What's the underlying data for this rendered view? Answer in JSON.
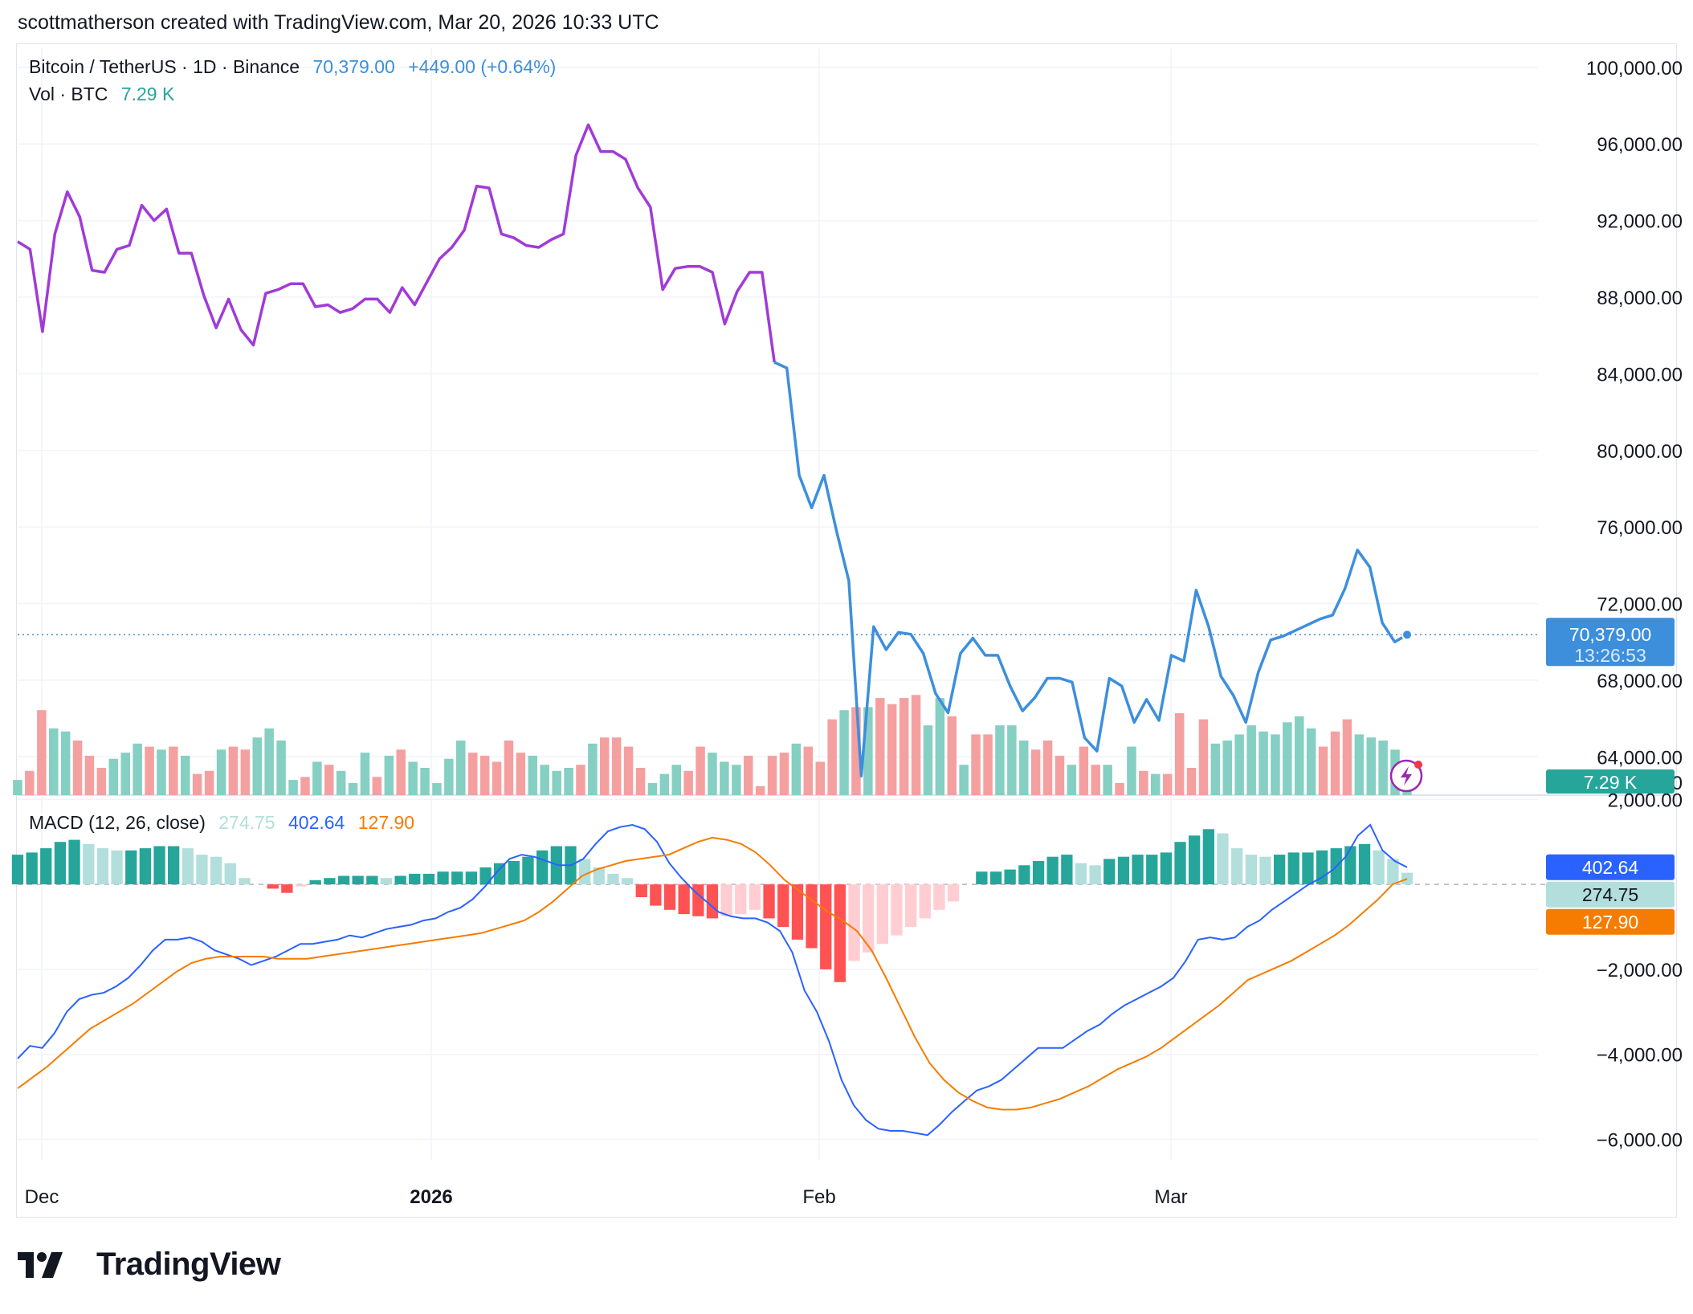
{
  "header": {
    "snapshot_text": "scottmatherson created with TradingView.com, Mar 20, 2026 10:33 UTC"
  },
  "price_legend": {
    "symbol": "Bitcoin / TetherUS · 1D · Binance",
    "last": "70,379.00",
    "change": "+449.00 (+0.64%)"
  },
  "volume_legend": {
    "label": "Vol · BTC",
    "value": "7.29 K"
  },
  "macd_legend": {
    "label": "MACD (12, 26, close)",
    "histogram": "274.75",
    "macd": "402.64",
    "signal": "127.90"
  },
  "price_axis": {
    "tick_labels": [
      "100,000.00",
      "96,000.00",
      "92,000.00",
      "88,000.00",
      "84,000.00",
      "80,000.00",
      "76,000.00",
      "72,000.00",
      "68,000.00",
      "64,000.00"
    ],
    "volume_axis_partial": ".00",
    "last_price_tag": "70,379.00",
    "countdown": "13:26:53",
    "volume_tag": "7.29 K"
  },
  "macd_axis": {
    "tick_labels": [
      "2,000.00",
      "−2,000.00",
      "−4,000.00",
      "−6,000.00"
    ],
    "macd_tag": "402.64",
    "histogram_tag": "274.75",
    "signal_tag": "127.90"
  },
  "time_axis": {
    "labels": [
      "Dec",
      "2026",
      "Feb",
      "Mar"
    ]
  },
  "brand": {
    "name": "TradingView"
  },
  "colors": {
    "price_line_top": "#a13ad8",
    "price_line_bottom": "#3d8fdc",
    "vol_up": "#86cfc3",
    "vol_down": "#f5a0a0",
    "macd_line": "#2962ff",
    "signal_line": "#f57c00",
    "hist_up_strong": "#26a69a",
    "hist_up_weak": "#b2dfdb",
    "hist_down_strong": "#ff5252",
    "hist_down_weak": "#ffcdd2"
  },
  "chart_data": [
    {
      "type": "line",
      "title": "Bitcoin / TetherUS · 1D · Binance",
      "x_start": "2025-11-28",
      "x_end": "2026-03-20",
      "ylim": [
        62000,
        101000
      ],
      "series": [
        {
          "name": "Bitcoin / TetherUS",
          "values": [
            90900,
            90500,
            86200,
            91300,
            93500,
            92200,
            89400,
            89300,
            90500,
            90700,
            92800,
            92000,
            92600,
            90300,
            90300,
            88100,
            86400,
            87900,
            86300,
            85500,
            88200,
            88400,
            88700,
            88700,
            87500,
            87600,
            87200,
            87400,
            87900,
            87900,
            87200,
            88500,
            87600,
            88800,
            90000,
            90600,
            91500,
            93800,
            93700,
            91300,
            91100,
            90700,
            90600,
            91000,
            91300,
            95400,
            97000,
            95600,
            95600,
            95200,
            93700,
            92700,
            88400,
            89500,
            89600,
            89600,
            89300,
            86600,
            88300,
            89300,
            89300,
            84600,
            84300,
            78700,
            77000,
            78700,
            75800,
            73200,
            63000,
            70800,
            69600,
            70500,
            70400,
            69400,
            67300,
            66300,
            69400,
            70200,
            69300,
            69300,
            67700,
            66400,
            67100,
            68100,
            68100,
            67900,
            65000,
            64300,
            68100,
            67700,
            65800,
            67000,
            65900,
            69300,
            69000,
            72700,
            70800,
            68200,
            67200,
            65800,
            68400,
            70100,
            70300,
            70600,
            70900,
            71200,
            71400,
            72800,
            74800,
            73900,
            71000,
            70000,
            70379
          ]
        }
      ]
    },
    {
      "type": "bar",
      "title": "Vol · BTC",
      "ylim": [
        0,
        45000
      ],
      "series": [
        {
          "name": "Vol · BTC",
          "values": [
            5000,
            8000,
            28000,
            22000,
            21000,
            18000,
            13000,
            9000,
            12000,
            14000,
            17000,
            16000,
            15000,
            16000,
            13000,
            7000,
            8000,
            15000,
            16000,
            15000,
            19000,
            22000,
            18000,
            5000,
            6000,
            11000,
            10000,
            8000,
            4000,
            14000,
            6000,
            13000,
            15000,
            11000,
            9000,
            4000,
            12000,
            18000,
            14000,
            13000,
            11000,
            18000,
            14000,
            13000,
            10000,
            8000,
            9000,
            10000,
            17000,
            19000,
            19000,
            16000,
            9000,
            4000,
            7000,
            10000,
            8000,
            16000,
            14000,
            11000,
            10000,
            13000,
            3000,
            13000,
            14000,
            17000,
            16000,
            11000,
            25000,
            28000,
            29000,
            29000,
            32000,
            30000,
            32000,
            33000,
            23000,
            32000,
            26000,
            10000,
            20000,
            20000,
            23000,
            23000,
            18000,
            15000,
            18000,
            13000,
            10000,
            16000,
            10000,
            10000,
            4000,
            16000,
            8000,
            7000,
            7000,
            27000,
            9000,
            25000,
            17000,
            18000,
            20000,
            23000,
            21000,
            20000,
            24000,
            26000,
            22000,
            16000,
            21000,
            25000,
            20000,
            19000,
            18000,
            15000,
            7290
          ],
          "colors_note": "mixed up/down"
        }
      ]
    },
    {
      "type": "line",
      "title": "MACD (12, 26, close)",
      "ylim": [
        -6500,
        2100
      ],
      "series": [
        {
          "name": "MACD",
          "values": [
            -4100,
            -3800,
            -3850,
            -3500,
            -3000,
            -2700,
            -2600,
            -2550,
            -2400,
            -2200,
            -1900,
            -1550,
            -1300,
            -1300,
            -1250,
            -1350,
            -1550,
            -1650,
            -1750,
            -1900,
            -1800,
            -1700,
            -1550,
            -1400,
            -1400,
            -1350,
            -1300,
            -1200,
            -1250,
            -1150,
            -1050,
            -1000,
            -950,
            -850,
            -800,
            -650,
            -550,
            -350,
            -50,
            300,
            600,
            700,
            650,
            550,
            450,
            450,
            600,
            950,
            1250,
            1350,
            1400,
            1300,
            1000,
            500,
            150,
            -150,
            -400,
            -650,
            -750,
            -800,
            -800,
            -900,
            -1100,
            -1600,
            -2500,
            -3000,
            -3700,
            -4600,
            -5200,
            -5550,
            -5750,
            -5800,
            -5800,
            -5850,
            -5900,
            -5650,
            -5350,
            -5100,
            -4850,
            -4750,
            -4600,
            -4350,
            -4100,
            -3850,
            -3850,
            -3850,
            -3650,
            -3450,
            -3300,
            -3050,
            -2850,
            -2700,
            -2550,
            -2400,
            -2200,
            -1800,
            -1300,
            -1250,
            -1300,
            -1250,
            -1000,
            -850,
            -600,
            -400,
            -200,
            0,
            150,
            350,
            650,
            1150,
            1400,
            800,
            550,
            402.64
          ]
        },
        {
          "name": "Signal",
          "values": [
            -4800,
            -4550,
            -4300,
            -4000,
            -3700,
            -3400,
            -3200,
            -3000,
            -2800,
            -2550,
            -2300,
            -2050,
            -1850,
            -1750,
            -1700,
            -1700,
            -1700,
            -1700,
            -1750,
            -1750,
            -1750,
            -1700,
            -1650,
            -1600,
            -1550,
            -1500,
            -1450,
            -1400,
            -1350,
            -1300,
            -1250,
            -1200,
            -1150,
            -1050,
            -950,
            -850,
            -650,
            -400,
            -100,
            200,
            350,
            450,
            550,
            600,
            650,
            700,
            850,
            1000,
            1100,
            1050,
            950,
            750,
            450,
            100,
            -150,
            -400,
            -650,
            -850,
            -1100,
            -1550,
            -2200,
            -2900,
            -3600,
            -4200,
            -4600,
            -4900,
            -5100,
            -5250,
            -5300,
            -5300,
            -5250,
            -5150,
            -5050,
            -4900,
            -4750,
            -4550,
            -4350,
            -4200,
            -4050,
            -3850,
            -3600,
            -3350,
            -3100,
            -2850,
            -2550,
            -2250,
            -2100,
            -1950,
            -1800,
            -1600,
            -1400,
            -1200,
            -950,
            -650,
            -350,
            0,
            127.9
          ],
          "note": "signal line sampled across the same date span"
        },
        {
          "name": "Histogram",
          "values": [
            700,
            750,
            850,
            1000,
            1050,
            950,
            850,
            800,
            800,
            850,
            900,
            900,
            850,
            700,
            650,
            500,
            150,
            0,
            -100,
            -200,
            -50,
            100,
            150,
            200,
            200,
            200,
            150,
            200,
            250,
            250,
            300,
            300,
            300,
            400,
            500,
            550,
            650,
            800,
            900,
            900,
            600,
            400,
            250,
            150,
            -300,
            -500,
            -600,
            -700,
            -750,
            -800,
            -750,
            -700,
            -600,
            -800,
            -1000,
            -1300,
            -1500,
            -2000,
            -2300,
            -1800,
            -1600,
            -1400,
            -1200,
            -1000,
            -800,
            -600,
            -400,
            0,
            300,
            300,
            350,
            450,
            550,
            650,
            700,
            500,
            450,
            600,
            650,
            700,
            700,
            750,
            1000,
            1150,
            1300,
            1200,
            850,
            700,
            650,
            700,
            750,
            750,
            800,
            850,
            900,
            950,
            800,
            600,
            274.75
          ]
        }
      ]
    }
  ]
}
